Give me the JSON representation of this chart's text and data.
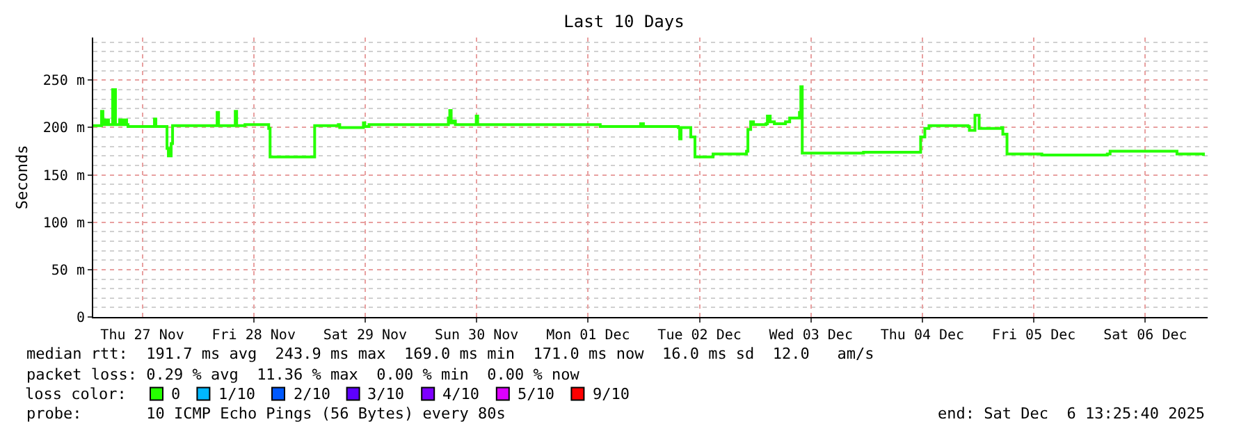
{
  "chart_data": {
    "type": "step",
    "title": "Last 10 Days",
    "ylabel": "Seconds",
    "legend_title": "loss color:",
    "xlim": [
      "2025-11-26T13:25:40",
      "2025-12-06T13:25:40"
    ],
    "xticks": [
      {
        "value": "2025-11-27",
        "label": "Thu 27 Nov"
      },
      {
        "value": "2025-11-28",
        "label": "Fri 28 Nov"
      },
      {
        "value": "2025-11-29",
        "label": "Sat 29 Nov"
      },
      {
        "value": "2025-11-30",
        "label": "Sun 30 Nov"
      },
      {
        "value": "2025-12-01",
        "label": "Mon 01 Dec"
      },
      {
        "value": "2025-12-02",
        "label": "Tue 02 Dec"
      },
      {
        "value": "2025-12-03",
        "label": "Wed 03 Dec"
      },
      {
        "value": "2025-12-04",
        "label": "Thu 04 Dec"
      },
      {
        "value": "2025-12-05",
        "label": "Fri 05 Dec"
      },
      {
        "value": "2025-12-06",
        "label": "Sat 06 Dec"
      }
    ],
    "ylim": [
      0,
      295
    ],
    "yticks": [
      0,
      {
        "value": 50,
        "label": "50 m"
      },
      {
        "value": 100,
        "label": "100 m"
      },
      {
        "value": 150,
        "label": "150 m"
      },
      {
        "value": 200,
        "label": "200 m"
      },
      {
        "value": 250,
        "label": "250 m"
      }
    ],
    "grid": true,
    "legend": "bottom",
    "series": [
      {
        "name": "0",
        "color": "#26ff00",
        "x": [
          "2025-11-26T13:26",
          "2025-11-26T14:55",
          "2025-11-26T15:13",
          "2025-11-26T15:31",
          "2025-11-26T16:07",
          "2025-11-26T16:43",
          "2025-11-26T17:37",
          "2025-11-26T18:13",
          "2025-11-26T19:07",
          "2025-11-26T19:43",
          "2025-11-26T20:01",
          "2025-11-26T20:37",
          "2025-11-26T20:55",
          "2025-11-27T02:19",
          "2025-11-27T02:37",
          "2025-11-27T02:55",
          "2025-11-27T05:01",
          "2025-11-27T05:19",
          "2025-11-27T05:37",
          "2025-11-27T06:13",
          "2025-11-27T06:31",
          "2025-11-27T15:49",
          "2025-11-27T16:07",
          "2025-11-27T16:25",
          "2025-11-27T19:43",
          "2025-11-27T20:01",
          "2025-11-27T20:19",
          "2025-11-27T20:55",
          "2025-11-27T22:07",
          "2025-11-28T02:55",
          "2025-11-28T03:13",
          "2025-11-28T03:31",
          "2025-11-28T12:49",
          "2025-11-28T13:07",
          "2025-11-28T18:13",
          "2025-11-28T18:31",
          "2025-11-28T23:19",
          "2025-11-28T23:37",
          "2025-11-28T23:55",
          "2025-11-29T00:49",
          "2025-11-29T17:19",
          "2025-11-29T17:55",
          "2025-11-29T18:13",
          "2025-11-29T18:31",
          "2025-11-29T19:07",
          "2025-11-29T19:25",
          "2025-11-29T23:37",
          "2025-11-29T23:55",
          "2025-11-30T00:13",
          "2025-12-01T02:19",
          "2025-12-01T02:37",
          "2025-12-01T09:49",
          "2025-12-01T11:19",
          "2025-12-01T11:55",
          "2025-12-01T14:55",
          "2025-12-01T19:25",
          "2025-12-01T19:43",
          "2025-12-01T20:01",
          "2025-12-01T21:49",
          "2025-12-01T22:07",
          "2025-12-01T22:43",
          "2025-12-01T23:01",
          "2025-12-02T02:19",
          "2025-12-02T02:55",
          "2025-12-02T09:49",
          "2025-12-02T10:07",
          "2025-12-02T10:25",
          "2025-12-02T11:01",
          "2025-12-02T11:37",
          "2025-12-02T14:19",
          "2025-12-02T14:37",
          "2025-12-02T15:13",
          "2025-12-02T16:07",
          "2025-12-02T18:31",
          "2025-12-02T19:25",
          "2025-12-02T21:31",
          "2025-12-02T21:49",
          "2025-12-02T22:07",
          "2025-12-03T05:19",
          "2025-12-03T11:19",
          "2025-12-03T17:19",
          "2025-12-03T23:19",
          "2025-12-03T23:37",
          "2025-12-04T00:31",
          "2025-12-04T01:25",
          "2025-12-04T05:19",
          "2025-12-04T09:49",
          "2025-12-04T10:07",
          "2025-12-04T11:19",
          "2025-12-04T12:13",
          "2025-12-04T17:01",
          "2025-12-04T17:19",
          "2025-12-04T18:13",
          "2025-12-05T00:49",
          "2025-12-05T01:43",
          "2025-12-05T15:49",
          "2025-12-05T16:25",
          "2025-12-06T05:19",
          "2025-12-06T06:49",
          "2025-12-06T12:31"
        ],
        "values": [
          202,
          202,
          217,
          203,
          208,
          203,
          240,
          203,
          208,
          203,
          208,
          203,
          201,
          201,
          209,
          201,
          201,
          178,
          170,
          183,
          202,
          202,
          216,
          202,
          202,
          217,
          202,
          202,
          203,
          203,
          199,
          169,
          169,
          202,
          203,
          200,
          200,
          205,
          201,
          203,
          203,
          210,
          218,
          205,
          207,
          203,
          203,
          212,
          203,
          203,
          201,
          201,
          204,
          201,
          201,
          200,
          188,
          200,
          200,
          190,
          190,
          169,
          169,
          172,
          172,
          175,
          198,
          206,
          203,
          204,
          212,
          206,
          204,
          206,
          210,
          216,
          243,
          173,
          173,
          174,
          174,
          174,
          190,
          199,
          202,
          202,
          201,
          197,
          213,
          199,
          200,
          193,
          172,
          172,
          171,
          172,
          175,
          175,
          172,
          170
        ]
      },
      {
        "name": "1/10",
        "color": "#00b8ff"
      },
      {
        "name": "2/10",
        "color": "#0059ff"
      },
      {
        "name": "3/10",
        "color": "#5e00ff"
      },
      {
        "name": "4/10",
        "color": "#7e00ff"
      },
      {
        "name": "5/10",
        "color": "#dd00ff"
      },
      {
        "name": "9/10",
        "color": "#ff0000"
      }
    ],
    "annotations": [
      "median rtt:  191.7 ms avg  243.9 ms max  169.0 ms min  171.0 ms now  16.0 ms sd  12.0   am/s",
      "packet loss: 0.29 % avg  11.36 % max  0.00 % min  0.00 % now",
      "probe:       10 ICMP Echo Pings (56 Bytes) every 80s",
      "end: Sat Dec  6 13:25:40 2025"
    ]
  }
}
